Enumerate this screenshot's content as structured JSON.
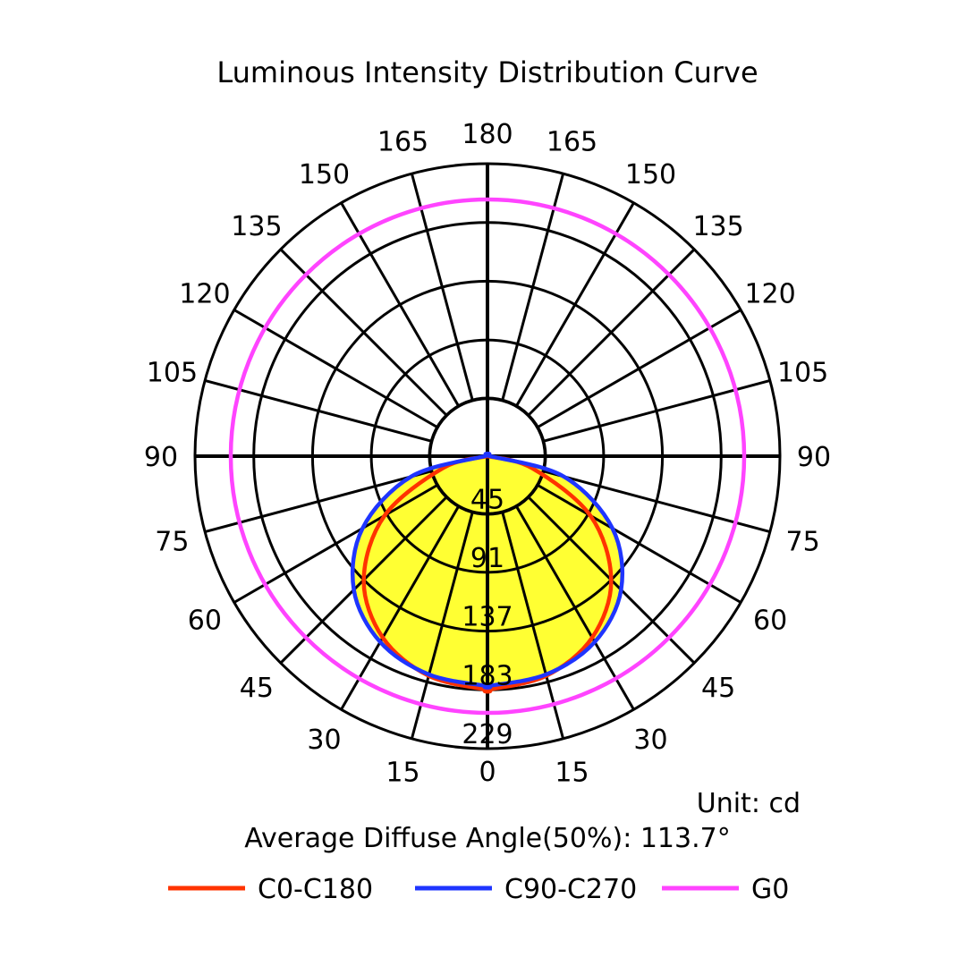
{
  "chart_data": {
    "type": "polar",
    "title": "Luminous Intensity Distribution Curve",
    "unit_label": "Unit: cd",
    "average_angle_label": "Average Diffuse Angle(50%): 113.7°",
    "radial_max": 229,
    "radial_ticks": [
      45,
      91,
      137,
      183,
      229
    ],
    "angle_ticks_deg": [
      0,
      15,
      30,
      45,
      60,
      75,
      90,
      105,
      120,
      135,
      150,
      165,
      180
    ],
    "angle_tick_labels": [
      "0",
      "15",
      "30",
      "45",
      "60",
      "75",
      "90",
      "105",
      "120",
      "135",
      "150",
      "165",
      "180"
    ],
    "angle_step_deg": 15,
    "fill_color": "#ffff33",
    "series": [
      {
        "name": "C0-C180",
        "color": "#ff3300",
        "angles_deg": [
          0,
          15,
          30,
          45,
          60,
          75,
          90
        ],
        "values": [
          183,
          178,
          164,
          137,
          93,
          36,
          0
        ]
      },
      {
        "name": "C90-C270",
        "color": "#1f35ff",
        "angles_deg": [
          0,
          15,
          30,
          45,
          60,
          75,
          90
        ],
        "values": [
          180,
          177,
          168,
          148,
          113,
          62,
          2
        ]
      },
      {
        "name": "G0",
        "color": "#ff44ff",
        "circle_value": 201
      }
    ]
  }
}
